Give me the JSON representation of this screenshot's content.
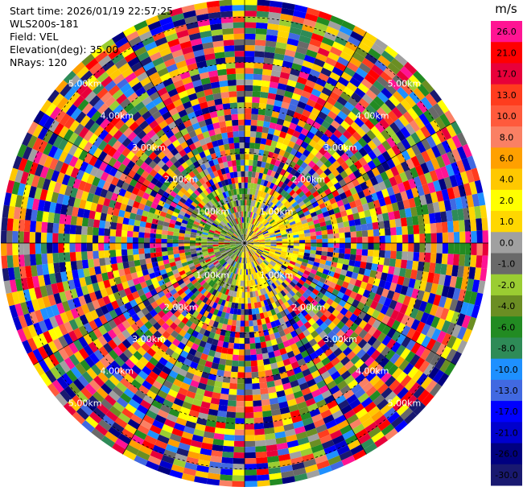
{
  "info": {
    "start_time": "Start time: 2026/01/19 22:57:25",
    "station": "WLS200s-181",
    "field": "Field: VEL",
    "elevation": "Elevation(deg): 35.00",
    "nrays": "NRays: 120"
  },
  "chart_data": {
    "type": "heatmap",
    "projection": "polar-ppi",
    "field": "VEL",
    "units": "m/s",
    "nrays": 120,
    "range_rings_km": [
      1,
      2,
      3,
      4,
      5
    ],
    "ring_labels": [
      "1.00km",
      "2.00km",
      "3.00km",
      "4.00km",
      "5.00km"
    ],
    "max_range_km": 5.4,
    "colorbar": {
      "title": "m/s",
      "tick_labels": [
        "26.0",
        "21.0",
        "17.0",
        "13.0",
        "10.0",
        "8.0",
        "6.0",
        "4.0",
        "2.0",
        "1.0",
        "0.0",
        "-1.0",
        "-2.0",
        "-4.0",
        "-6.0",
        "-8.0",
        "-10.0",
        "-13.0",
        "-17.0",
        "-21.0",
        "-26.0",
        "-30.0"
      ],
      "colors": [
        "#ff1493",
        "#ff0000",
        "#e8003a",
        "#ff3c1e",
        "#ff5a3c",
        "#fa8064",
        "#ffa000",
        "#ffc800",
        "#ffff00",
        "#ffd700",
        "#a0a0a0",
        "#696969",
        "#9acd32",
        "#6b8e23",
        "#228b22",
        "#2e8b57",
        "#1e90ff",
        "#4169e1",
        "#0000ff",
        "#0000cd",
        "#000080",
        "#191970"
      ]
    }
  }
}
